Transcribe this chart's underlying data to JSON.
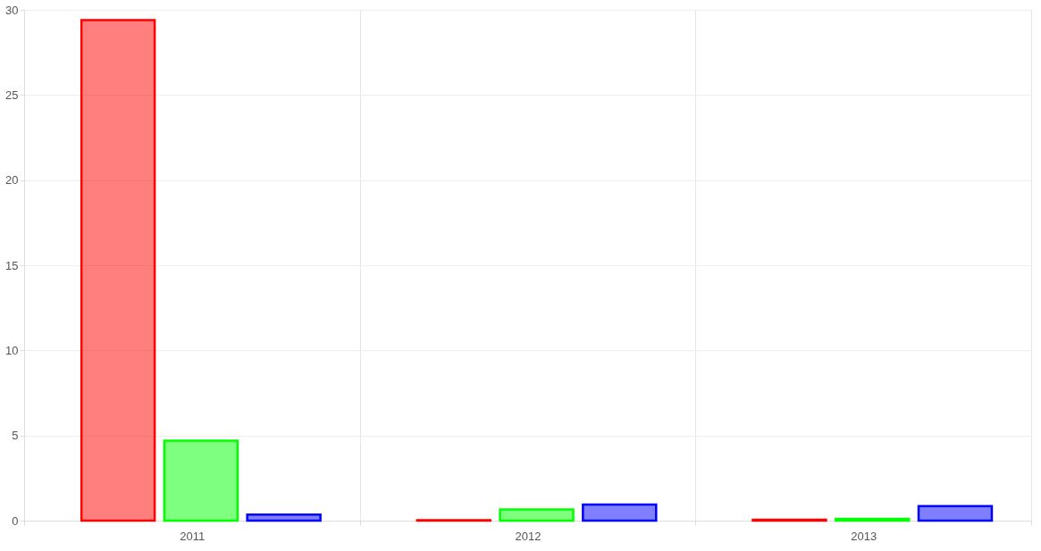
{
  "chart_data": {
    "type": "bar",
    "categories": [
      "2011",
      "2012",
      "2013"
    ],
    "series": [
      {
        "color": "#ff0000",
        "values": [
          29.4,
          0.02,
          0.05
        ]
      },
      {
        "color": "#00ff00",
        "values": [
          4.7,
          0.65,
          0.1
        ]
      },
      {
        "color": "#0000ff",
        "values": [
          0.35,
          0.95,
          0.85
        ]
      }
    ],
    "ylim": [
      0,
      30
    ],
    "yticks": [
      0,
      5,
      10,
      15,
      20,
      25,
      30
    ],
    "grid": true,
    "legend": false
  }
}
